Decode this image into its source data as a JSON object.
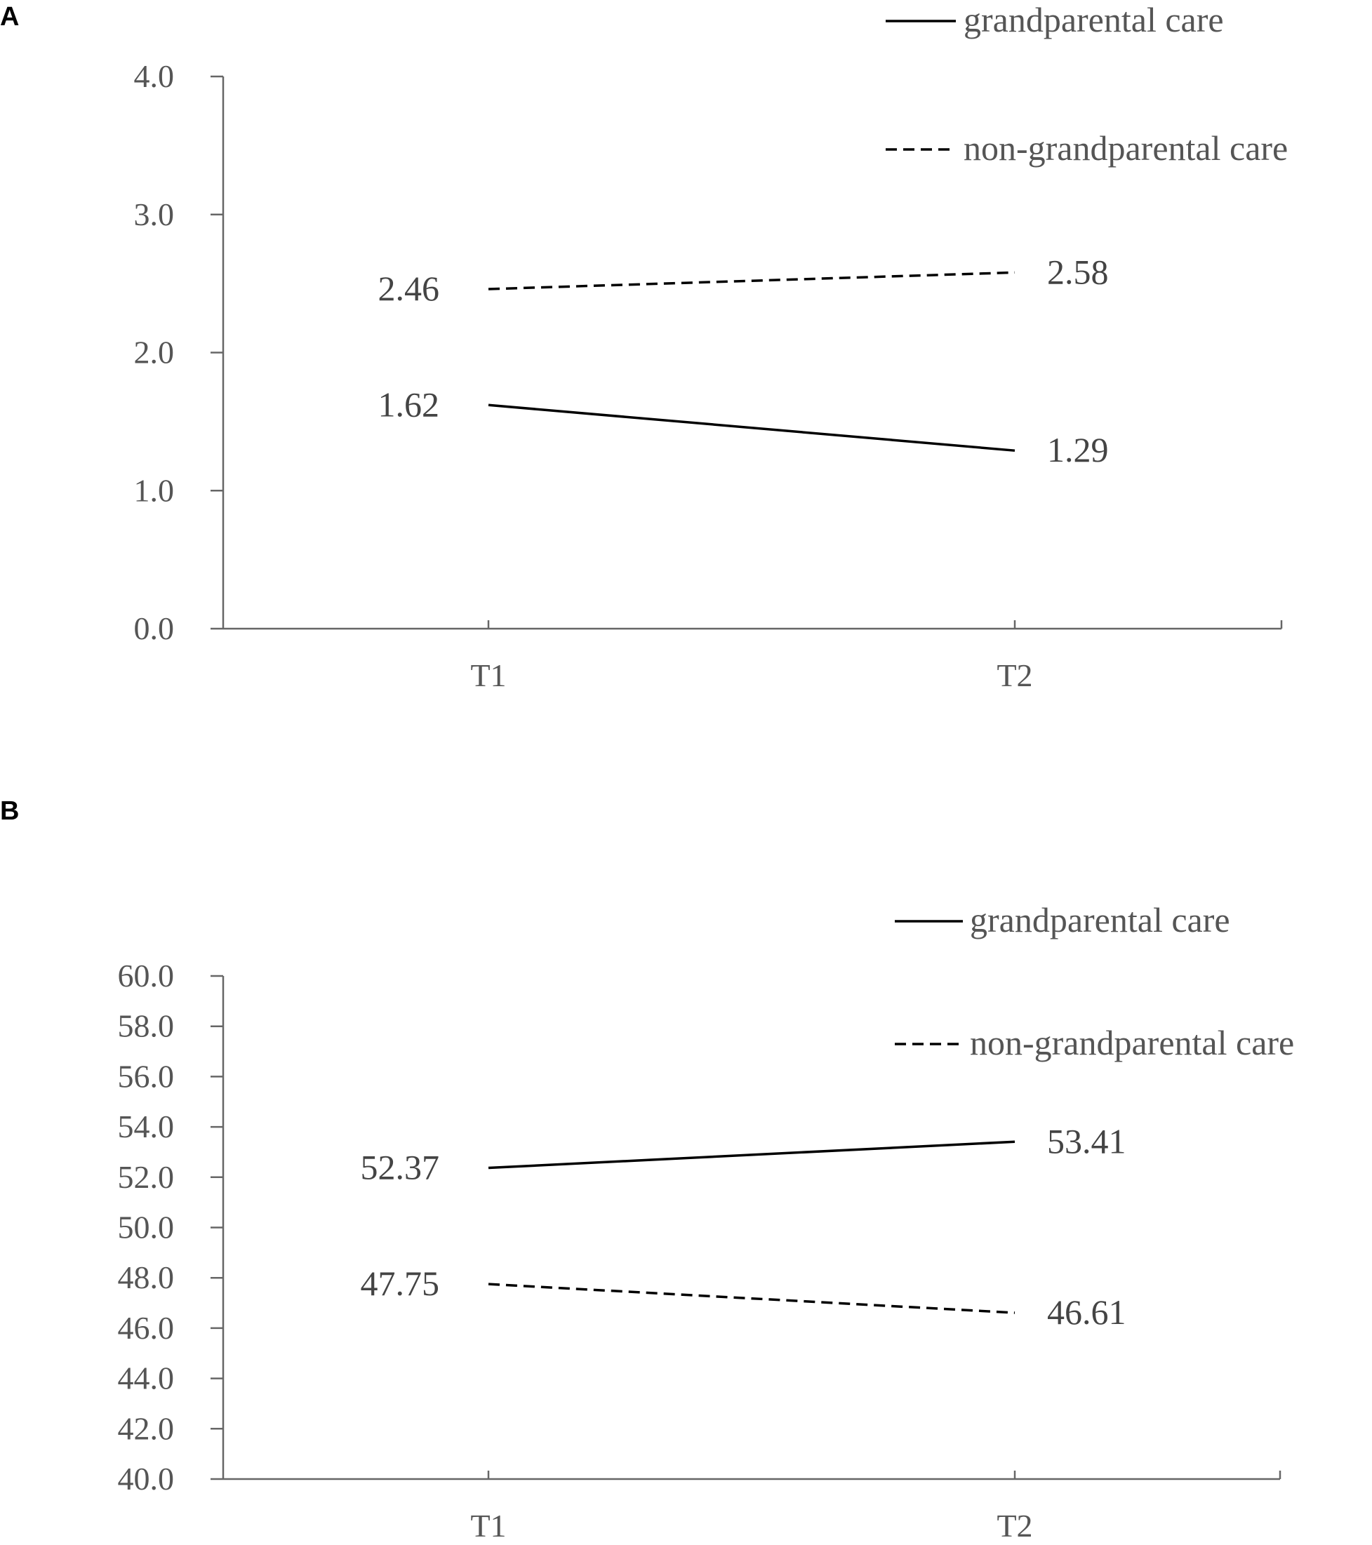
{
  "chart_data": [
    {
      "panel": "A",
      "type": "line",
      "categories": [
        "T1",
        "T2"
      ],
      "ylim": [
        0,
        4
      ],
      "yticks": [
        "0.0",
        "1.0",
        "2.0",
        "3.0",
        "4.0"
      ],
      "grid": false,
      "legend_position": "top-right",
      "series": [
        {
          "name": "grandparental care",
          "values": [
            1.62,
            1.29
          ],
          "labels": [
            "1.62",
            "1.29"
          ],
          "style": "solid"
        },
        {
          "name": "non-grandparental care",
          "values": [
            2.46,
            2.58
          ],
          "labels": [
            "2.46",
            "2.58"
          ],
          "style": "dashed"
        }
      ]
    },
    {
      "panel": "B",
      "type": "line",
      "categories": [
        "T1",
        "T2"
      ],
      "ylim": [
        40,
        60
      ],
      "yticks": [
        "40.0",
        "42.0",
        "44.0",
        "46.0",
        "48.0",
        "50.0",
        "52.0",
        "54.0",
        "56.0",
        "58.0",
        "60.0"
      ],
      "grid": false,
      "legend_position": "top-right",
      "series": [
        {
          "name": "grandparental care",
          "values": [
            52.37,
            53.41
          ],
          "labels": [
            "52.37",
            "53.41"
          ],
          "style": "solid"
        },
        {
          "name": "non-grandparental care",
          "values": [
            47.75,
            46.61
          ],
          "labels": [
            "47.75",
            "46.61"
          ],
          "style": "dashed"
        }
      ]
    }
  ]
}
